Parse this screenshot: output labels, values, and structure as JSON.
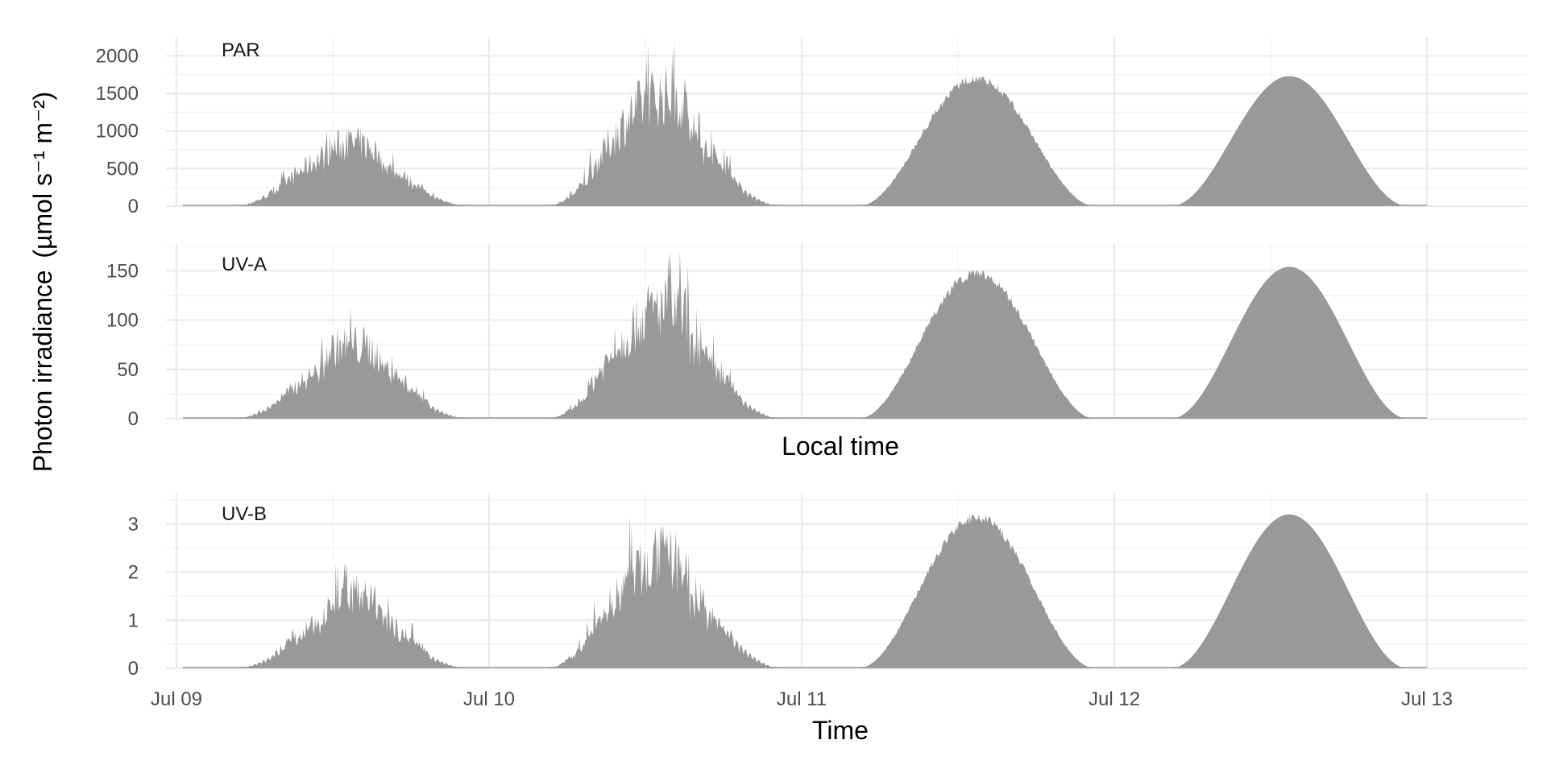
{
  "chart_data": {
    "type": "area",
    "y_title": "Photon irradiance",
    "y_unit": "(µmol s⁻¹ m⁻²)",
    "shared_x_title": "Time",
    "x_ticks": [
      "Jul 09",
      "Jul 10",
      "Jul 11",
      "Jul 12",
      "Jul 13"
    ],
    "fill_color": "#999999",
    "grid": true,
    "panels": [
      {
        "label": "PAR",
        "ylim": [
          0,
          2250
        ],
        "yticks": [
          0,
          500,
          1000,
          1500,
          2000
        ],
        "days": [
          {
            "day": 0,
            "peaks": [
              1120,
              1150,
              1240,
              960,
              790
            ],
            "envelope": 650
          },
          {
            "day": 1,
            "peaks": [
              1950,
              2240,
              2220,
              1520,
              780
            ],
            "envelope": 1000
          },
          {
            "day": 2,
            "peaks": [
              1800,
              1780,
              1720
            ],
            "envelope": 1760
          },
          {
            "day": 3,
            "peaks": [
              1730
            ],
            "envelope": 1730
          }
        ]
      },
      {
        "label": "UV-A",
        "ylim": [
          0,
          178
        ],
        "yticks": [
          0,
          50,
          100,
          150
        ],
        "xlabel": "Local time",
        "days": [
          {
            "day": 0,
            "peaks": [
              75,
              88,
              113,
              93,
              47
            ],
            "envelope": 58
          },
          {
            "day": 1,
            "peaks": [
              128,
              166,
              170,
              122,
              48
            ],
            "envelope": 80
          },
          {
            "day": 2,
            "peaks": [
              154,
              150,
              142
            ],
            "envelope": 153
          },
          {
            "day": 3,
            "peaks": [
              154
            ],
            "envelope": 154
          }
        ]
      },
      {
        "label": "UV-B",
        "ylim": [
          0,
          3.65
        ],
        "yticks": [
          0,
          1,
          2,
          3
        ],
        "days": [
          {
            "day": 0,
            "peaks": [
              0.85,
              1.7,
              2.2,
              1.8,
              0.9
            ],
            "envelope": 1.1
          },
          {
            "day": 1,
            "peaks": [
              3.1,
              3.5,
              3.45,
              2.05,
              0.6
            ],
            "envelope": 1.8
          },
          {
            "day": 2,
            "peaks": [
              3.25,
              3.2,
              3.0
            ],
            "envelope": 3.25
          },
          {
            "day": 3,
            "peaks": [
              3.2
            ],
            "envelope": 3.2
          }
        ]
      }
    ]
  }
}
